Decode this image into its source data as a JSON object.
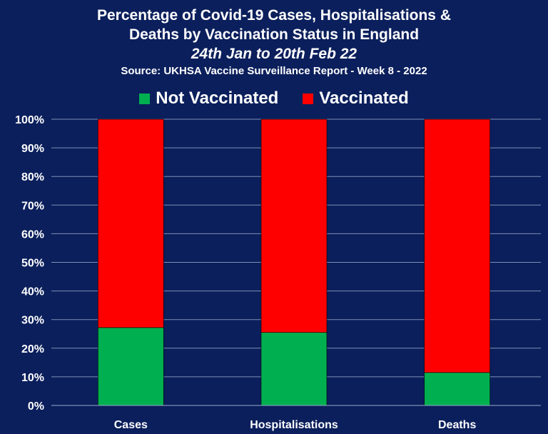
{
  "chart_data": {
    "type": "bar",
    "stacked": true,
    "title_line1": "Percentage of Covid-19 Cases, Hospitalisations &",
    "title_line2": "Deaths by Vaccination Status in England",
    "subtitle": "24th Jan to 20th Feb 22",
    "source": "Source: UKHSA Vaccine Surveillance Report - Week 8 - 2022",
    "categories": [
      "Cases",
      "Hospitalisations",
      "Deaths"
    ],
    "series": [
      {
        "name": "Not Vaccinated",
        "color": "#00b050",
        "values": [
          27.2,
          25.5,
          11.5
        ]
      },
      {
        "name": "Vaccinated",
        "color": "#ff0000",
        "values": [
          72.8,
          74.5,
          88.5
        ]
      }
    ],
    "ylim": [
      0,
      100
    ],
    "yticks": [
      "0%",
      "10%",
      "20%",
      "30%",
      "40%",
      "50%",
      "60%",
      "70%",
      "80%",
      "90%",
      "100%"
    ],
    "grid": true,
    "legend_position": "top-center",
    "xlabel": "",
    "ylabel": ""
  }
}
